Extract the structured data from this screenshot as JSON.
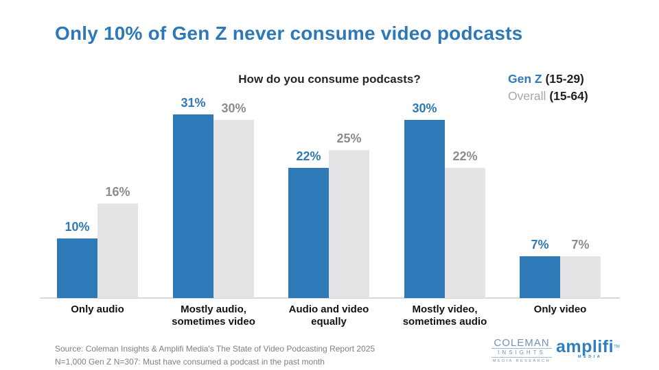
{
  "title": {
    "text": "Only 10% of Gen Z never consume video podcasts",
    "color": "#2E78B8"
  },
  "chart_data": {
    "type": "bar",
    "question": "How do you consume podcasts?",
    "categories": [
      "Only audio",
      "Mostly audio,\nsometimes video",
      "Audio and video\nequally",
      "Mostly video,\nsometimes audio",
      "Only video"
    ],
    "series": [
      {
        "name": "Gen Z",
        "age_range": "(15-29)",
        "values": [
          10,
          31,
          22,
          30,
          7
        ],
        "color": "#2E79B7",
        "label_color": "#2E79B7"
      },
      {
        "name": "Overall",
        "age_range": "(15-64)",
        "values": [
          16,
          30,
          25,
          22,
          7
        ],
        "color": "#E4E4E6",
        "label_color": "#8C8C8C"
      }
    ],
    "unit": "%",
    "ylim": [
      0,
      35
    ],
    "grid": false,
    "value_labels": true,
    "legend_position": "top-right",
    "axis_line_color": "#D9D9D9"
  },
  "legend": {
    "genz": {
      "name": "Gen Z",
      "range": "(15-29)"
    },
    "overall": {
      "name": "Overall",
      "range": "(15-64)"
    }
  },
  "footer": {
    "source_line1": "Source: Coleman Insights & Amplifi Media's The State of Video Podcasting Report 2025",
    "source_line2": "N=1,000 Gen Z N=307: Must have consumed a podcast in the past month",
    "coleman": {
      "line1": "COLEMAN",
      "line2": "INSIGHTS",
      "line3": "MEDIA RESEARCH"
    },
    "amplifi": {
      "name": "amplifi",
      "tm": "TM",
      "sub": "MEDIA"
    }
  }
}
